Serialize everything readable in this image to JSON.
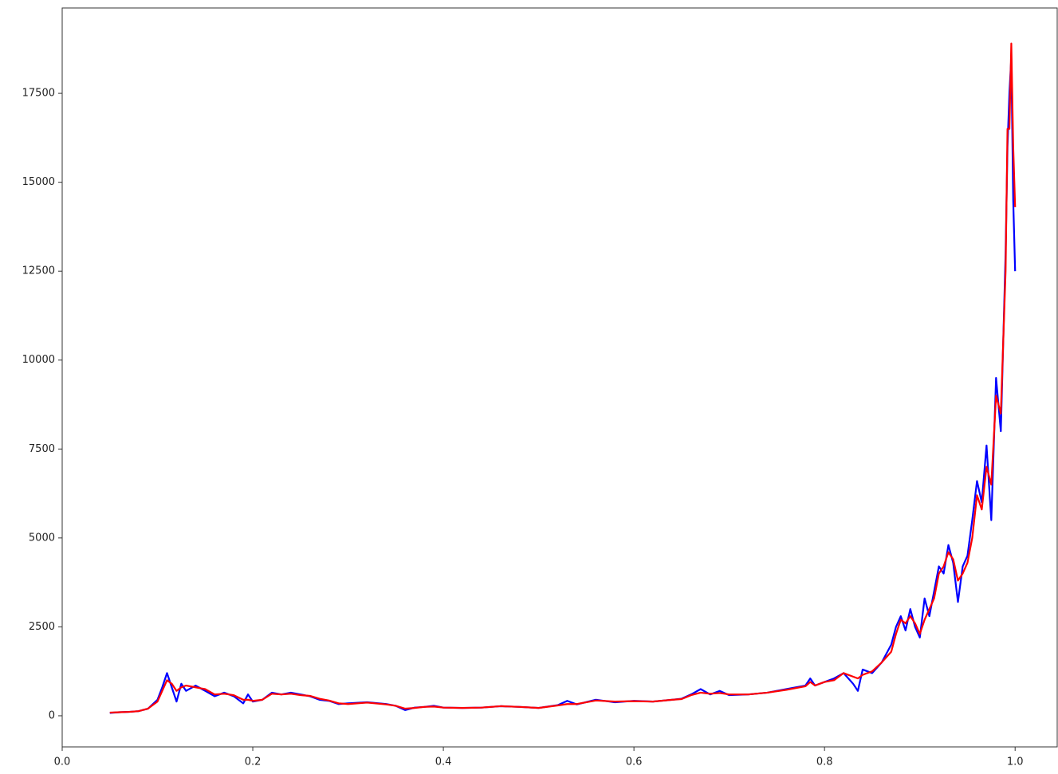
{
  "chart_data": {
    "type": "line",
    "x": [
      0.05,
      0.06,
      0.07,
      0.08,
      0.09,
      0.1,
      0.105,
      0.11,
      0.115,
      0.12,
      0.125,
      0.13,
      0.14,
      0.15,
      0.16,
      0.17,
      0.18,
      0.19,
      0.195,
      0.2,
      0.21,
      0.22,
      0.23,
      0.24,
      0.25,
      0.26,
      0.27,
      0.28,
      0.29,
      0.3,
      0.32,
      0.34,
      0.35,
      0.36,
      0.37,
      0.38,
      0.39,
      0.4,
      0.42,
      0.44,
      0.46,
      0.48,
      0.5,
      0.52,
      0.53,
      0.54,
      0.56,
      0.58,
      0.6,
      0.62,
      0.64,
      0.65,
      0.66,
      0.67,
      0.68,
      0.69,
      0.7,
      0.72,
      0.74,
      0.76,
      0.78,
      0.785,
      0.79,
      0.8,
      0.81,
      0.82,
      0.83,
      0.835,
      0.84,
      0.85,
      0.86,
      0.87,
      0.875,
      0.88,
      0.885,
      0.89,
      0.895,
      0.9,
      0.905,
      0.91,
      0.915,
      0.92,
      0.925,
      0.93,
      0.935,
      0.94,
      0.945,
      0.95,
      0.955,
      0.96,
      0.965,
      0.97,
      0.975,
      0.98,
      0.985,
      0.99,
      0.992,
      0.994,
      0.996,
      0.998,
      1.0
    ],
    "series": [
      {
        "color": "#0000ff",
        "values": [
          80,
          100,
          110,
          130,
          200,
          450,
          800,
          1200,
          800,
          400,
          900,
          700,
          850,
          700,
          550,
          650,
          550,
          350,
          600,
          400,
          450,
          650,
          600,
          650,
          600,
          550,
          450,
          420,
          330,
          350,
          380,
          330,
          280,
          160,
          230,
          250,
          280,
          230,
          220,
          230,
          270,
          250,
          220,
          300,
          420,
          320,
          450,
          380,
          420,
          400,
          450,
          480,
          600,
          750,
          600,
          700,
          580,
          600,
          650,
          750,
          850,
          1050,
          850,
          950,
          1050,
          1200,
          900,
          700,
          1300,
          1200,
          1500,
          2000,
          2500,
          2800,
          2400,
          3000,
          2500,
          2200,
          3300,
          2800,
          3500,
          4200,
          4000,
          4800,
          4300,
          3200,
          4200,
          4500,
          5500,
          6600,
          6000,
          7600,
          5500,
          9500,
          8000,
          13000,
          16000,
          17500,
          18500,
          14500,
          12500
        ]
      },
      {
        "color": "#ff0000",
        "values": [
          90,
          100,
          110,
          130,
          200,
          400,
          700,
          1000,
          900,
          700,
          800,
          850,
          800,
          750,
          600,
          620,
          580,
          450,
          450,
          420,
          450,
          620,
          600,
          620,
          580,
          560,
          480,
          430,
          350,
          330,
          370,
          320,
          280,
          200,
          220,
          250,
          260,
          230,
          220,
          230,
          270,
          250,
          220,
          290,
          330,
          330,
          430,
          400,
          410,
          400,
          450,
          470,
          580,
          650,
          620,
          640,
          600,
          600,
          650,
          730,
          830,
          950,
          850,
          950,
          1000,
          1200,
          1100,
          1050,
          1150,
          1250,
          1500,
          1800,
          2300,
          2700,
          2600,
          2800,
          2600,
          2300,
          2700,
          3000,
          3300,
          4000,
          4200,
          4600,
          4400,
          3800,
          4000,
          4300,
          5000,
          6200,
          5800,
          7000,
          6500,
          9000,
          8500,
          12500,
          16500,
          16500,
          18900,
          16000,
          14300
        ]
      }
    ],
    "xlim": [
      0,
      1.045
    ],
    "ylim": [
      -875,
      19900
    ],
    "xticks": [
      {
        "value": 0,
        "label": "0.0"
      },
      0.2,
      0.4,
      0.6,
      0.8,
      {
        "value": 1,
        "label": "1.0"
      }
    ],
    "yticks": [
      0,
      2500,
      5000,
      7500,
      10000,
      12500,
      15000,
      17500
    ]
  }
}
